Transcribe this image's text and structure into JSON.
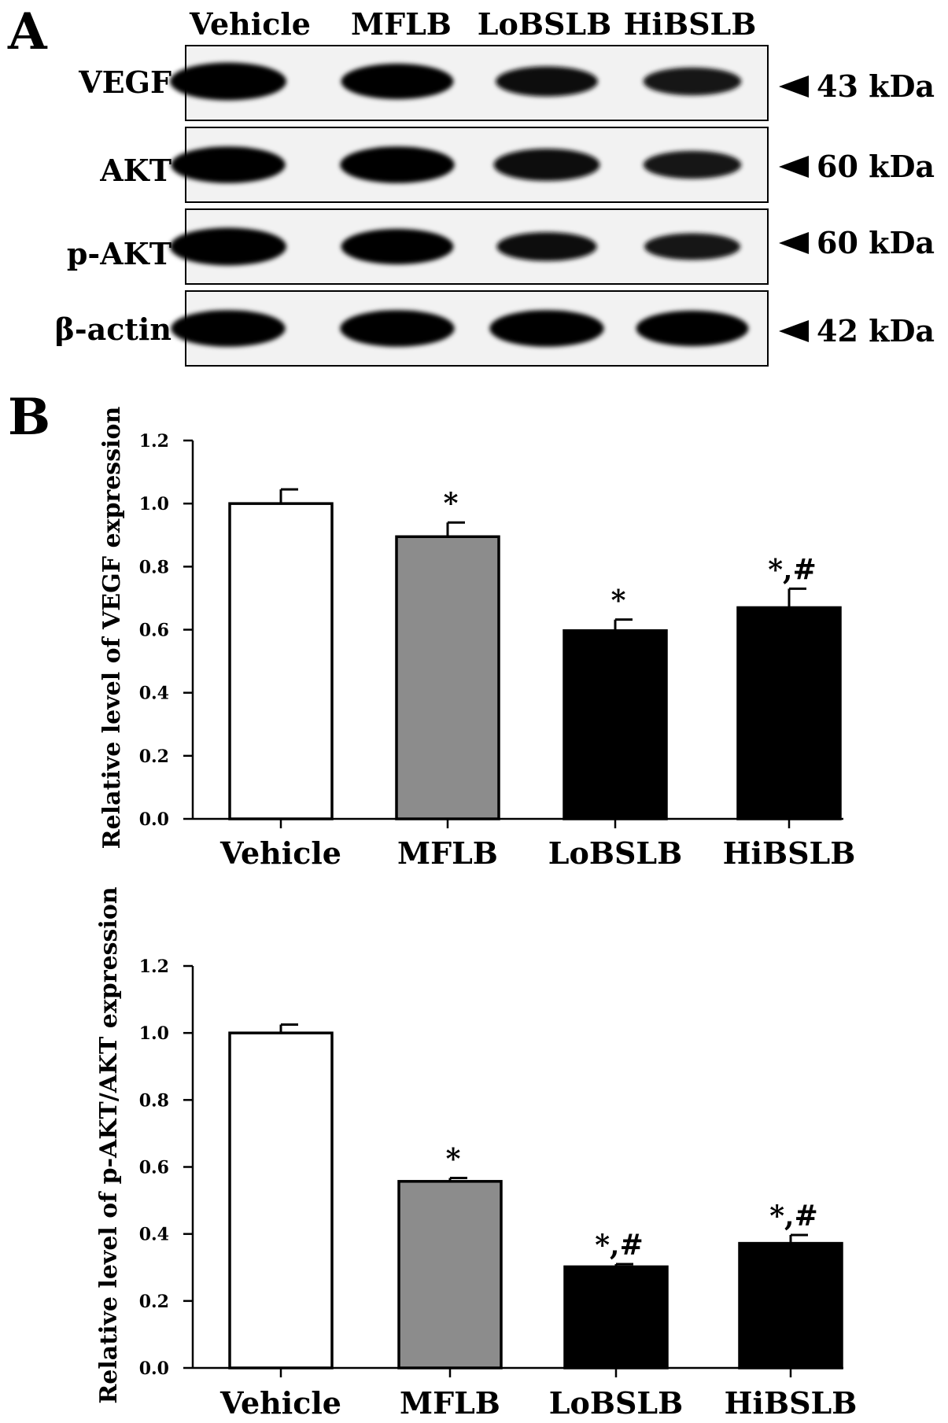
{
  "panel_a": {
    "label": "A",
    "lanes": [
      "Vehicle",
      "MFLB",
      "LoBSLB",
      "HiBSLB"
    ],
    "blots": [
      {
        "protein": "VEGF",
        "mw": "43 kDa",
        "intensity": [
          1.0,
          0.9,
          0.65,
          0.55
        ]
      },
      {
        "protein": "AKT",
        "mw": "60 kDa",
        "intensity": [
          0.95,
          0.95,
          0.75,
          0.55
        ]
      },
      {
        "protein": "p-AKT",
        "mw": "60 kDa",
        "intensity": [
          1.0,
          0.9,
          0.6,
          0.5
        ]
      },
      {
        "protein": "β-actin",
        "mw": "42 kDa",
        "intensity": [
          0.95,
          0.95,
          0.95,
          0.9
        ]
      }
    ]
  },
  "panel_b": {
    "label": "B"
  },
  "colors": {
    "vehicle": "#ffffff",
    "mflb": "#8c8c8c",
    "bslb": "#000000"
  },
  "chart_data": [
    {
      "type": "bar",
      "ylabel": "Relative level of VEGF expression",
      "categories": [
        "Vehicle",
        "MFLB",
        "LoBSLB",
        "HiBSLB"
      ],
      "values": [
        1.0,
        0.895,
        0.597,
        0.67
      ],
      "errors": [
        0.045,
        0.045,
        0.035,
        0.06
      ],
      "annotations": [
        "",
        "*",
        "*",
        "*,#"
      ],
      "ylim": [
        0,
        1.2
      ],
      "yticks": [
        "0.0",
        "0.2",
        "0.4",
        "0.6",
        "0.8",
        "1.0",
        "1.2"
      ],
      "grid": false
    },
    {
      "type": "bar",
      "ylabel": "Relative level of p-AKT/AKT expression",
      "categories": [
        "Vehicle",
        "MFLB",
        "LoBSLB",
        "HiBSLB"
      ],
      "values": [
        1.0,
        0.557,
        0.302,
        0.372
      ],
      "errors": [
        0.025,
        0.01,
        0.008,
        0.025
      ],
      "annotations": [
        "",
        "*",
        "*,#",
        "*,#"
      ],
      "ylim": [
        0,
        1.2
      ],
      "yticks": [
        "0.0",
        "0.2",
        "0.4",
        "0.6",
        "0.8",
        "1.0",
        "1.2"
      ],
      "grid": false
    }
  ]
}
